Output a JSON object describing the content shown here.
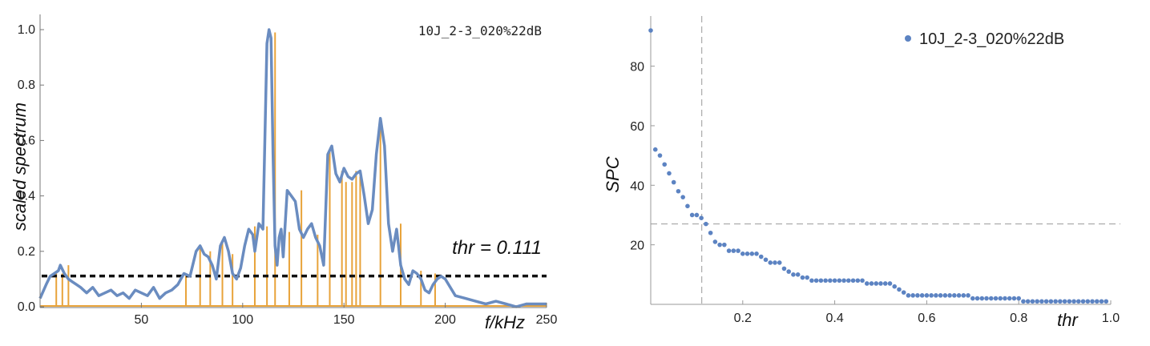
{
  "chart_data": [
    {
      "type": "line",
      "xlabel": "f/kHz",
      "ylabel": "scaled spectrum",
      "xlim": [
        0,
        250
      ],
      "ylim": [
        0,
        1.0
      ],
      "xticks": [
        "50",
        "100",
        "150",
        "200",
        "250"
      ],
      "yticks": [
        "0.0",
        "0.2",
        "0.4",
        "0.6",
        "0.8",
        "1.0"
      ],
      "legend": "10J_2-3_020%22dB",
      "legend_position": "top-right",
      "threshold": 0.111,
      "annotation": "thr = 0.111",
      "colors": {
        "spectrum": "#6a8cc0",
        "peaks": "#e8a33a",
        "threshold": "#111111"
      },
      "series": [
        {
          "role": "spectrum",
          "x": [
            0,
            3,
            5,
            7,
            9,
            10,
            12,
            14,
            16,
            18,
            20,
            23,
            26,
            29,
            32,
            35,
            38,
            41,
            44,
            47,
            50,
            53,
            56,
            59,
            62,
            65,
            68,
            71,
            74,
            77,
            79,
            81,
            83,
            85,
            87,
            89,
            91,
            93,
            95,
            97,
            99,
            101,
            103,
            105,
            106,
            108,
            110,
            112,
            113,
            114,
            115,
            116,
            117,
            118,
            119,
            120,
            122,
            124,
            126,
            128,
            130,
            132,
            134,
            136,
            138,
            140,
            142,
            144,
            146,
            148,
            150,
            152,
            154,
            156,
            158,
            160,
            162,
            164,
            166,
            168,
            170,
            172,
            174,
            176,
            178,
            180,
            182,
            184,
            186,
            188,
            190,
            192,
            194,
            196,
            198,
            200,
            205,
            210,
            215,
            220,
            225,
            230,
            235,
            240,
            245,
            250
          ],
          "y": [
            0.03,
            0.08,
            0.11,
            0.12,
            0.13,
            0.15,
            0.12,
            0.1,
            0.09,
            0.08,
            0.07,
            0.05,
            0.07,
            0.04,
            0.05,
            0.06,
            0.04,
            0.05,
            0.03,
            0.06,
            0.05,
            0.04,
            0.07,
            0.03,
            0.05,
            0.06,
            0.08,
            0.12,
            0.11,
            0.2,
            0.22,
            0.19,
            0.18,
            0.15,
            0.1,
            0.22,
            0.25,
            0.2,
            0.12,
            0.1,
            0.14,
            0.22,
            0.28,
            0.26,
            0.2,
            0.3,
            0.28,
            0.95,
            1.0,
            0.97,
            0.55,
            0.22,
            0.15,
            0.25,
            0.28,
            0.18,
            0.42,
            0.4,
            0.38,
            0.28,
            0.25,
            0.28,
            0.3,
            0.25,
            0.22,
            0.15,
            0.55,
            0.58,
            0.48,
            0.45,
            0.5,
            0.47,
            0.46,
            0.48,
            0.49,
            0.4,
            0.3,
            0.35,
            0.55,
            0.68,
            0.58,
            0.3,
            0.2,
            0.28,
            0.15,
            0.1,
            0.08,
            0.13,
            0.12,
            0.1,
            0.06,
            0.05,
            0.08,
            0.1,
            0.11,
            0.1,
            0.04,
            0.03,
            0.02,
            0.01,
            0.02,
            0.01,
            0.0,
            0.01,
            0.01,
            0.01
          ]
        },
        {
          "role": "peaks",
          "x": [
            8,
            11,
            14,
            72,
            79,
            84,
            90,
            95,
            106,
            112,
            116,
            123,
            129,
            137,
            143,
            149,
            151,
            154,
            156,
            158,
            168,
            178,
            188,
            195
          ],
          "y": [
            0.12,
            0.12,
            0.15,
            0.12,
            0.21,
            0.2,
            0.24,
            0.19,
            0.29,
            0.29,
            0.99,
            0.27,
            0.42,
            0.26,
            0.56,
            0.49,
            0.45,
            0.45,
            0.49,
            0.47,
            0.66,
            0.3,
            0.13,
            0.12
          ]
        }
      ]
    },
    {
      "type": "scatter",
      "xlabel": "thr",
      "ylabel": "SPC",
      "xlim": [
        0,
        1.0
      ],
      "ylim": [
        0,
        92
      ],
      "xticks": [
        "0.2",
        "0.4",
        "0.6",
        "0.8",
        "1.0"
      ],
      "yticks": [
        "20",
        "40",
        "60",
        "80"
      ],
      "legend": "10J_2-3_020%22dB",
      "legend_position": "top-right",
      "threshold_x": 0.111,
      "threshold_y": 27,
      "colors": {
        "points": "#5c83c2",
        "guides": "#999999"
      },
      "series": [
        {
          "name": "10J_2-3_020%22dB",
          "x": [
            0.0,
            0.01,
            0.02,
            0.03,
            0.04,
            0.05,
            0.06,
            0.07,
            0.08,
            0.09,
            0.1,
            0.11,
            0.12,
            0.13,
            0.14,
            0.15,
            0.16,
            0.17,
            0.18,
            0.19,
            0.2,
            0.21,
            0.22,
            0.23,
            0.24,
            0.25,
            0.26,
            0.27,
            0.28,
            0.29,
            0.3,
            0.31,
            0.32,
            0.33,
            0.34,
            0.35,
            0.36,
            0.37,
            0.38,
            0.39,
            0.4,
            0.41,
            0.42,
            0.43,
            0.44,
            0.45,
            0.46,
            0.47,
            0.48,
            0.49,
            0.5,
            0.51,
            0.52,
            0.53,
            0.54,
            0.55,
            0.56,
            0.57,
            0.58,
            0.59,
            0.6,
            0.61,
            0.62,
            0.63,
            0.64,
            0.65,
            0.66,
            0.67,
            0.68,
            0.69,
            0.7,
            0.71,
            0.72,
            0.73,
            0.74,
            0.75,
            0.76,
            0.77,
            0.78,
            0.79,
            0.8,
            0.81,
            0.82,
            0.83,
            0.84,
            0.85,
            0.86,
            0.87,
            0.88,
            0.89,
            0.9,
            0.91,
            0.92,
            0.93,
            0.94,
            0.95,
            0.96,
            0.97,
            0.98,
            0.99
          ],
          "y": [
            92,
            52,
            50,
            47,
            44,
            41,
            38,
            36,
            33,
            30,
            30,
            29,
            27,
            24,
            21,
            20,
            20,
            18,
            18,
            18,
            17,
            17,
            17,
            17,
            16,
            15,
            14,
            14,
            14,
            12,
            11,
            10,
            10,
            9,
            9,
            8,
            8,
            8,
            8,
            8,
            8,
            8,
            8,
            8,
            8,
            8,
            8,
            7,
            7,
            7,
            7,
            7,
            7,
            6,
            5,
            4,
            3,
            3,
            3,
            3,
            3,
            3,
            3,
            3,
            3,
            3,
            3,
            3,
            3,
            3,
            2,
            2,
            2,
            2,
            2,
            2,
            2,
            2,
            2,
            2,
            2,
            1,
            1,
            1,
            1,
            1,
            1,
            1,
            1,
            1,
            1,
            1,
            1,
            1,
            1,
            1,
            1,
            1,
            1,
            1
          ]
        }
      ]
    }
  ]
}
